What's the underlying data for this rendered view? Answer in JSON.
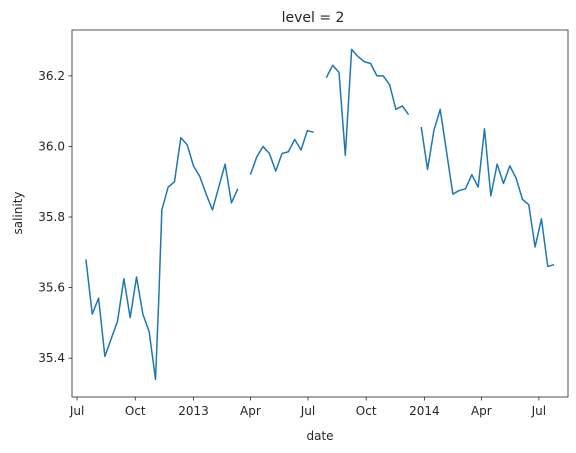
{
  "chart_data": {
    "type": "line",
    "title": "level = 2",
    "xlabel": "date",
    "ylabel": "salinity",
    "grid": false,
    "legend": "none",
    "x_ticks": [
      "Jul",
      "Oct",
      "2013",
      "Apr",
      "Jul",
      "Oct",
      "2014",
      "Apr",
      "Jul"
    ],
    "y_ticks": [
      "35.4",
      "35.6",
      "35.8",
      "36.0",
      "36.2"
    ],
    "ylim": [
      35.29,
      36.33
    ],
    "xlim": [
      "2012-06-23",
      "2014-08-16"
    ],
    "colors": {
      "line": "#1f77b4",
      "axes": "#262626"
    },
    "series": [
      {
        "x": [
          "2012-07-15",
          "2012-07-25",
          "2012-08-04",
          "2012-08-14",
          "2012-08-24",
          "2012-09-03",
          "2012-09-13",
          "2012-09-23",
          "2012-10-03",
          "2012-10-13",
          "2012-10-23",
          "2012-11-02",
          "2012-11-07",
          "2012-11-12",
          "2012-11-22",
          "2012-12-02",
          "2012-12-12",
          "2012-12-22",
          "2013-01-01",
          "2013-01-11",
          "2013-01-21",
          "2013-01-31",
          "2013-02-10",
          "2013-02-20",
          "2013-03-02",
          "2013-03-12",
          "2013-03-22",
          "2013-04-01",
          "2013-04-11",
          "2013-04-21",
          "2013-05-01",
          "2013-05-11",
          "2013-05-21",
          "2013-05-31",
          "2013-06-10",
          "2013-06-20",
          "2013-06-30",
          "2013-07-10",
          "2013-07-20",
          "2013-07-30",
          "2013-08-09",
          "2013-08-19",
          "2013-08-29",
          "2013-09-08",
          "2013-09-18",
          "2013-09-28",
          "2013-10-08",
          "2013-10-18",
          "2013-10-28",
          "2013-11-07",
          "2013-11-17",
          "2013-11-27",
          "2013-12-07",
          "2013-12-17",
          "2013-12-27",
          "2014-01-06",
          "2014-01-16",
          "2014-01-26",
          "2014-02-05",
          "2014-02-15",
          "2014-02-25",
          "2014-03-07",
          "2014-03-17",
          "2014-03-27",
          "2014-04-06",
          "2014-04-16",
          "2014-04-26",
          "2014-05-06",
          "2014-05-16",
          "2014-05-26",
          "2014-06-05",
          "2014-06-15",
          "2014-06-25",
          "2014-07-05",
          "2014-07-15",
          "2014-07-25"
        ],
        "values": [
          35.68,
          35.525,
          35.57,
          35.405,
          35.455,
          35.505,
          35.625,
          35.515,
          35.63,
          35.525,
          35.475,
          35.34,
          35.56,
          35.82,
          35.885,
          35.9,
          36.025,
          36.005,
          35.945,
          35.915,
          35.865,
          35.82,
          35.885,
          35.95,
          35.84,
          35.88,
          null,
          35.92,
          35.97,
          36.0,
          35.98,
          35.93,
          35.98,
          35.985,
          36.02,
          35.99,
          36.045,
          36.04,
          null,
          36.195,
          36.23,
          36.21,
          35.975,
          36.275,
          36.255,
          36.24,
          36.235,
          36.2,
          36.2,
          36.175,
          36.105,
          36.115,
          36.09,
          null,
          36.055,
          35.935,
          36.045,
          36.105,
          35.985,
          35.865,
          35.875,
          35.88,
          35.92,
          35.885,
          36.05,
          35.86,
          35.95,
          35.895,
          35.945,
          35.91,
          35.85,
          35.835,
          35.715,
          35.795,
          35.66,
          35.665
        ]
      }
    ]
  }
}
